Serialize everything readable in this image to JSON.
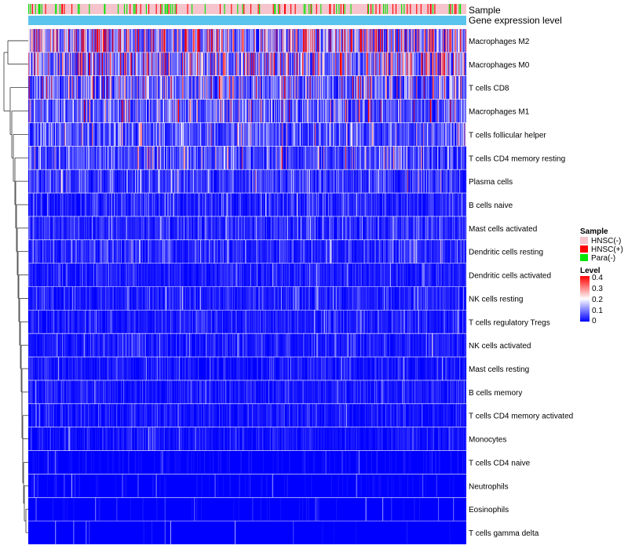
{
  "chart_data": {
    "type": "heatmap",
    "title": "",
    "annotation_tracks": [
      "Sample",
      "Gene expression level"
    ],
    "rows": [
      "Macrophages M2",
      "Macrophages M0",
      "T cells CD8",
      "Macrophages M1",
      "T cells follicular helper",
      "T cells CD4 memory resting",
      "Plasma cells",
      "B cells naive",
      "Mast cells activated",
      "Dendritic cells resting",
      "Dendritic cells activated",
      "NK cells resting",
      "T cells regulatory  Tregs",
      "NK cells activated",
      "Mast cells resting",
      "B cells memory",
      "T cells CD4 memory activated",
      "Monocytes",
      "T cells CD4 naive",
      "Neutrophils",
      "Eosinophils",
      "T cells gamma delta"
    ],
    "row_mean_levels": [
      0.22,
      0.18,
      0.12,
      0.11,
      0.09,
      0.08,
      0.06,
      0.04,
      0.04,
      0.04,
      0.03,
      0.035,
      0.03,
      0.03,
      0.025,
      0.025,
      0.02,
      0.02,
      0.008,
      0.006,
      0.004,
      0.003
    ],
    "column_count": 700,
    "sample_legend": {
      "title": "Sample",
      "entries": [
        {
          "label": "HNSC(-)",
          "color": "#f6c4cc"
        },
        {
          "label": "HNSC(+)",
          "color": "#ff0000"
        },
        {
          "label": "Para(-)",
          "color": "#00e600"
        }
      ]
    },
    "level_legend": {
      "title": "Level",
      "ticks": [
        "0.4",
        "0.3",
        "0.2",
        "0.1",
        "0"
      ],
      "range": [
        0,
        0.4
      ],
      "colors": {
        "low": "#0000ff",
        "mid": "#ffffff",
        "high": "#ff0000"
      }
    },
    "expression_bar_color": "#5bc4ec"
  }
}
